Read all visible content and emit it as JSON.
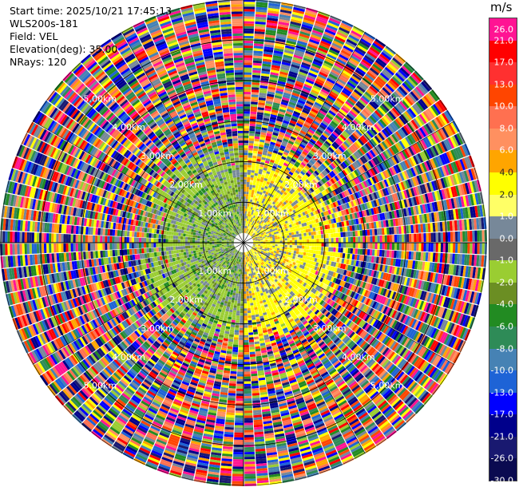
{
  "header": {
    "start_time": "Start time: 2025/10/21 17:45:13",
    "instrument": "WLS200s-181",
    "field": "Field: VEL",
    "elevation": "Elevation(deg): 35.00",
    "nrays": "NRays: 120"
  },
  "colorbar": {
    "unit": "m/s",
    "levels": [
      "26.0",
      "21.0",
      "17.0",
      "13.0",
      "10.0",
      "8.0",
      "6.0",
      "4.0",
      "2.0",
      "1.0",
      "0.0",
      "-1.0",
      "-2.0",
      "-4.0",
      "-6.0",
      "-8.0",
      "-10.0",
      "-13.0",
      "-17.0",
      "-21.0",
      "-26.0",
      "-30.0"
    ],
    "colors": [
      "#ff1493",
      "#ff0000",
      "#ff3030",
      "#ff4500",
      "#ff7050",
      "#ff9060",
      "#ffa500",
      "#ffff00",
      "#ffff66",
      "#778899",
      "#696969",
      "#9acd32",
      "#6b8e23",
      "#228b22",
      "#2e8b57",
      "#4682b4",
      "#1e63d6",
      "#0000ff",
      "#00008b",
      "#191970",
      "#0a0a50"
    ]
  },
  "chart_data": {
    "type": "heatmap",
    "projection": "polar PPI",
    "field": "VEL",
    "units": "m/s",
    "vmin": -30.0,
    "vmax": 26.0,
    "nrays": 120,
    "elevation_deg": 35.0,
    "max_range_km": 6.0,
    "range_rings_km": [
      1.0,
      2.0,
      3.0,
      4.0,
      5.0
    ],
    "ring_labels": [
      "1.00km",
      "2.00km",
      "3.00km",
      "4.00km",
      "5.00km"
    ],
    "coherent_range_km": [
      0.3,
      2.2
    ],
    "pattern": "negative (green) velocities west of site, positive (yellow/orange) east; noisy beyond ~2.3 km"
  }
}
